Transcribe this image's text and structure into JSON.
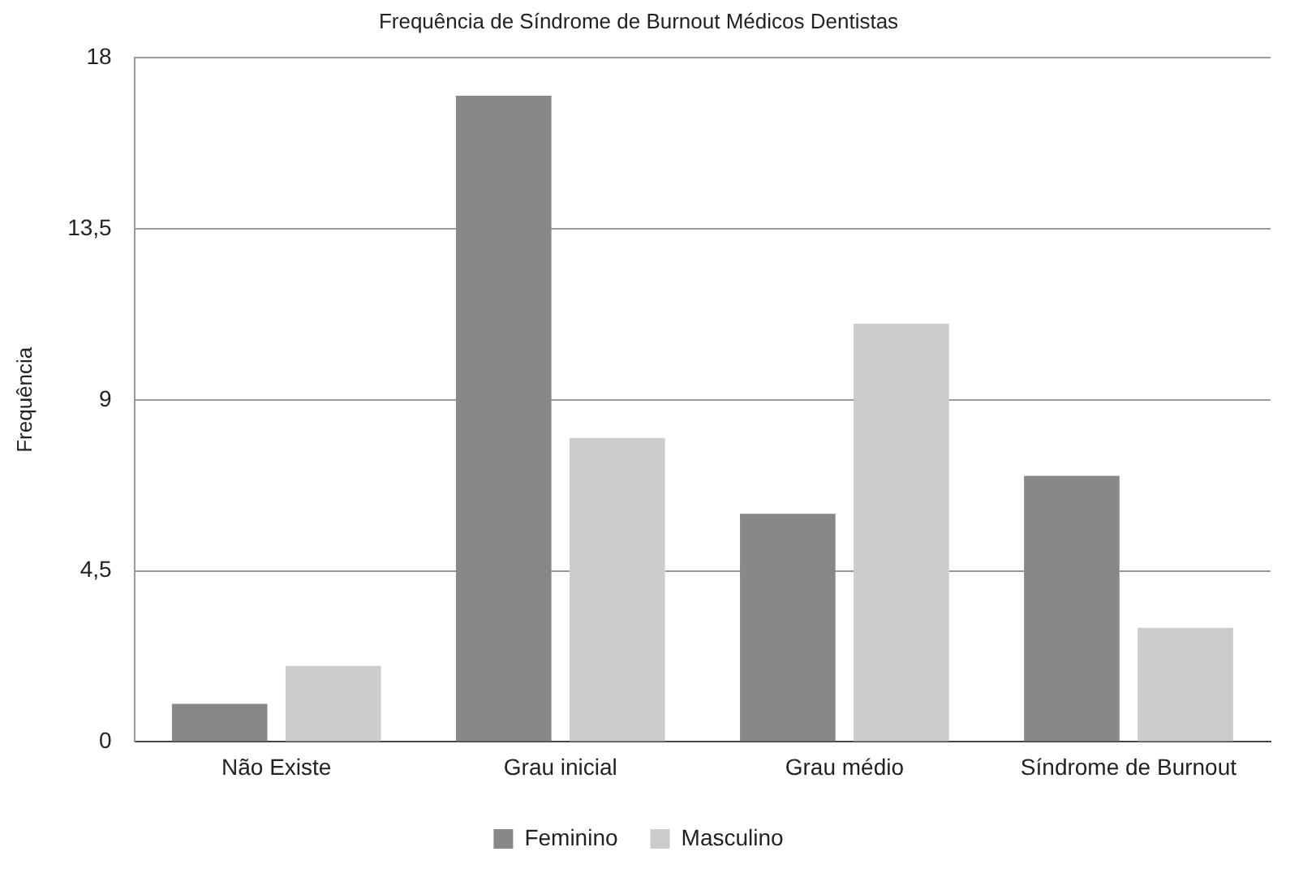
{
  "chart_data": {
    "type": "bar",
    "title": "Frequência de Síndrome de Burnout Médicos Dentistas",
    "ylabel": "Frequência",
    "categories": [
      "Não Existe",
      "Grau inicial",
      "Grau médio",
      "Síndrome de Burnout"
    ],
    "series": [
      {
        "name": "Feminino",
        "color": "#888888",
        "values": [
          1,
          17,
          6,
          7
        ]
      },
      {
        "name": "Masculino",
        "color": "#cccccc",
        "values": [
          2,
          8,
          11,
          3
        ]
      }
    ],
    "ylim": [
      0,
      18
    ],
    "yticks": [
      0,
      {
        "value": 4.5,
        "label": "4,5"
      },
      9,
      {
        "value": 13.5,
        "label": "13,5"
      },
      18
    ],
    "grid": "y",
    "legend": "bottom"
  }
}
